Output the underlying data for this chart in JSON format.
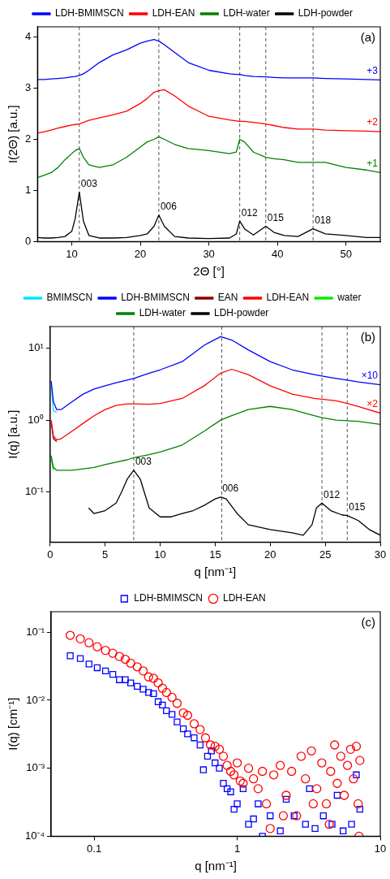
{
  "chart_data": [
    {
      "type": "line",
      "xlabel": "2Θ [°]",
      "ylabel": "I(2Θ) [a.u.]",
      "xlim": [
        5,
        55
      ],
      "xticks": [
        10,
        20,
        30,
        40,
        50
      ],
      "ylim": [
        0,
        4.2
      ],
      "yticks": [
        0,
        1,
        2,
        3,
        4
      ],
      "grid": false,
      "legend": "top",
      "marker": "none",
      "line_style": "solid",
      "x": [
        5,
        6,
        7,
        8,
        9,
        10,
        10.5,
        11.1,
        11.7,
        12.5,
        14,
        16,
        18,
        20,
        21,
        22,
        22.7,
        23.5,
        25,
        27,
        30,
        33,
        34,
        34.5,
        35.2,
        36.5,
        38.3,
        39.5,
        41,
        43,
        45.2,
        47,
        50,
        53,
        55
      ],
      "series": [
        {
          "name": "LDH-BMIMSCN",
          "color": "#0000ff",
          "values": [
            3.17,
            3.17,
            3.18,
            3.19,
            3.2,
            3.22,
            3.23,
            3.25,
            3.28,
            3.35,
            3.5,
            3.65,
            3.75,
            3.88,
            3.92,
            3.95,
            3.92,
            3.85,
            3.7,
            3.5,
            3.35,
            3.28,
            3.27,
            3.27,
            3.25,
            3.23,
            3.22,
            3.21,
            3.2,
            3.2,
            3.2,
            3.19,
            3.18,
            3.17,
            3.16
          ]
        },
        {
          "name": "LDH-EAN",
          "color": "#ff0000",
          "values": [
            2.12,
            2.15,
            2.18,
            2.22,
            2.25,
            2.28,
            2.29,
            2.3,
            2.33,
            2.37,
            2.42,
            2.48,
            2.55,
            2.7,
            2.8,
            2.92,
            2.95,
            2.97,
            2.85,
            2.65,
            2.45,
            2.38,
            2.36,
            2.35,
            2.35,
            2.33,
            2.3,
            2.27,
            2.23,
            2.2,
            2.2,
            2.18,
            2.17,
            2.16,
            2.15
          ]
        },
        {
          "name": "LDH-water",
          "color": "#008000",
          "values": [
            1.25,
            1.3,
            1.35,
            1.45,
            1.6,
            1.72,
            1.78,
            1.82,
            1.65,
            1.5,
            1.45,
            1.5,
            1.65,
            1.85,
            1.95,
            2.0,
            2.05,
            2.0,
            1.9,
            1.82,
            1.78,
            1.72,
            1.75,
            2.0,
            1.95,
            1.75,
            1.65,
            1.62,
            1.6,
            1.55,
            1.55,
            1.55,
            1.45,
            1.4,
            1.35
          ]
        },
        {
          "name": "LDH-powder",
          "color": "#000000",
          "values": [
            0.08,
            0.07,
            0.07,
            0.08,
            0.1,
            0.2,
            0.45,
            0.97,
            0.4,
            0.12,
            0.07,
            0.07,
            0.08,
            0.12,
            0.15,
            0.3,
            0.52,
            0.3,
            0.1,
            0.07,
            0.06,
            0.07,
            0.15,
            0.4,
            0.25,
            0.13,
            0.3,
            0.18,
            0.12,
            0.1,
            0.25,
            0.15,
            0.12,
            0.08,
            0.08
          ]
        }
      ],
      "ref_lines": [
        {
          "axis": "x",
          "value": 11.1,
          "color": "#555555",
          "line_style": "dashed"
        },
        {
          "axis": "x",
          "value": 22.7,
          "color": "#555555",
          "line_style": "dashed"
        },
        {
          "axis": "x",
          "value": 34.5,
          "color": "#555555",
          "line_style": "dashed"
        },
        {
          "axis": "x",
          "value": 38.3,
          "color": "#555555",
          "line_style": "dashed"
        },
        {
          "axis": "x",
          "value": 45.2,
          "color": "#555555",
          "line_style": "dashed"
        }
      ],
      "annotations": [
        "(a)",
        "+3",
        "+2",
        "+1",
        {
          "text": "003",
          "x": 11.1,
          "y": 0.97
        },
        {
          "text": "006",
          "x": 22.7,
          "y": 0.52
        },
        {
          "text": "012",
          "x": 34.5,
          "y": 0.4
        },
        {
          "text": "015",
          "x": 38.3,
          "y": 0.3
        },
        {
          "text": "018",
          "x": 45.2,
          "y": 0.25
        }
      ]
    },
    {
      "type": "line",
      "xlabel": "q [nm⁻¹]",
      "ylabel": "I(q) [a.u.]",
      "xlim": [
        0,
        30
      ],
      "xticks": [
        0,
        5,
        10,
        15,
        20,
        25,
        30
      ],
      "ylim": [
        0.02,
        20
      ],
      "yticks": [
        {
          "value": 0.1,
          "label": "10⁻¹"
        },
        {
          "value": 1,
          "label": "10⁰"
        },
        {
          "value": 10,
          "label": "10¹"
        }
      ],
      "log": "y",
      "grid": false,
      "legend": "top",
      "marker": "none",
      "line_style": "solid",
      "x": [
        0.1,
        0.3,
        0.6,
        1,
        2,
        3,
        4,
        5,
        6,
        7,
        7.6,
        9,
        10,
        12,
        14,
        15.5,
        16.5,
        18,
        20,
        22,
        24,
        24.7,
        26,
        27,
        28,
        30
      ],
      "series": [
        {
          "name": "BMIMSCN",
          "color": "#00e5ff",
          "values": [
            3.0,
            1.35,
            1.28,
            null,
            null,
            null,
            null,
            null,
            null,
            null,
            null,
            null,
            null,
            null,
            null,
            null,
            null,
            null,
            null,
            null,
            null,
            null,
            null,
            null,
            null,
            null
          ]
        },
        {
          "name": "LDH-BMIMSCN",
          "color": "#0000ff",
          "values": [
            3.5,
            1.8,
            1.4,
            1.4,
            1.8,
            2.3,
            2.7,
            3.0,
            3.3,
            3.6,
            3.8,
            4.5,
            5,
            6.5,
            11,
            14.5,
            13,
            9.5,
            6.5,
            5,
            4.3,
            4.1,
            3.8,
            3.6,
            3.4,
            3.1
          ]
        },
        {
          "name": "EAN",
          "color": "#8b0000",
          "values": [
            0.93,
            0.55,
            0.5,
            null,
            null,
            null,
            null,
            null,
            null,
            null,
            null,
            null,
            null,
            null,
            null,
            null,
            null,
            null,
            null,
            null,
            null,
            null,
            null,
            null,
            null,
            null
          ]
        },
        {
          "name": "LDH-EAN",
          "color": "#ff0000",
          "values": [
            1.0,
            0.6,
            0.53,
            0.55,
            0.7,
            0.9,
            1.15,
            1.4,
            1.6,
            1.68,
            1.68,
            1.66,
            1.7,
            2.0,
            3.0,
            4.5,
            5.1,
            4.3,
            3.0,
            2.3,
            2.0,
            1.95,
            1.85,
            1.7,
            1.55,
            1.25
          ]
        },
        {
          "name": "water",
          "color": "#00ee00",
          "values": [
            0.29,
            0.2,
            null,
            null,
            null,
            null,
            null,
            null,
            null,
            null,
            null,
            null,
            null,
            null,
            null,
            null,
            null,
            null,
            null,
            null,
            null,
            null,
            null,
            null,
            null,
            null
          ]
        },
        {
          "name": "LDH-water",
          "color": "#008000",
          "values": [
            0.32,
            0.22,
            0.2,
            0.2,
            0.2,
            0.21,
            0.22,
            0.24,
            0.26,
            0.28,
            0.3,
            0.33,
            0.36,
            0.45,
            0.7,
            1.0,
            1.15,
            1.4,
            1.55,
            1.4,
            1.15,
            1.08,
            1.0,
            0.98,
            0.96,
            0.87
          ]
        },
        {
          "name": "LDH-powder",
          "color": "#000000",
          "x": [
            3.5,
            4,
            5,
            6,
            6.5,
            7,
            7.6,
            8.2,
            9,
            10,
            11,
            12,
            13,
            14,
            15,
            15.5,
            16,
            17,
            18,
            20,
            22,
            23,
            23.8,
            24.2,
            24.7,
            25.5,
            26.5,
            27,
            28,
            29,
            30
          ],
          "values": [
            0.06,
            0.05,
            0.055,
            0.07,
            0.1,
            0.15,
            0.2,
            0.15,
            0.06,
            0.045,
            0.045,
            0.05,
            0.055,
            0.065,
            0.08,
            0.085,
            0.08,
            0.05,
            0.035,
            0.03,
            0.027,
            0.025,
            0.035,
            0.06,
            0.07,
            0.055,
            0.048,
            0.047,
            0.04,
            0.03,
            0.025
          ]
        }
      ],
      "ref_lines": [
        {
          "axis": "x",
          "value": 7.6,
          "color": "#555555",
          "line_style": "dashed"
        },
        {
          "axis": "x",
          "value": 15.6,
          "color": "#555555",
          "line_style": "dashed"
        },
        {
          "axis": "x",
          "value": 24.7,
          "color": "#555555",
          "line_style": "dashed"
        },
        {
          "axis": "x",
          "value": 27,
          "color": "#555555",
          "line_style": "dashed"
        }
      ],
      "annotations": [
        "(b)",
        "×10",
        "×2",
        {
          "text": "003",
          "x": 7.6,
          "y": 0.2
        },
        {
          "text": "006",
          "x": 15.5,
          "y": 0.085
        },
        {
          "text": "012",
          "x": 24.7,
          "y": 0.07
        },
        {
          "text": "015",
          "x": 27,
          "y": 0.047
        }
      ]
    },
    {
      "type": "scatter",
      "xlabel": "q [nm⁻¹]",
      "ylabel": "I(q) [cm⁻¹]",
      "xlim": [
        0.05,
        10
      ],
      "xticks": [
        0.1,
        1,
        10
      ],
      "ylim": [
        0.0001,
        0.2
      ],
      "yticks": [
        {
          "value": 0.0001,
          "label": "10⁻⁴"
        },
        {
          "value": 0.001,
          "label": "10⁻³"
        },
        {
          "value": 0.01,
          "label": "10⁻²"
        },
        {
          "value": 0.1,
          "label": "10⁻¹"
        }
      ],
      "log": "xy",
      "grid": false,
      "legend": "top",
      "series": [
        {
          "name": "LDH-BMIMSCN",
          "color": "#0000ff",
          "marker": "square",
          "x": [
            0.068,
            0.08,
            0.092,
            0.105,
            0.12,
            0.135,
            0.15,
            0.165,
            0.18,
            0.2,
            0.22,
            0.24,
            0.26,
            0.28,
            0.3,
            0.32,
            0.35,
            0.38,
            0.42,
            0.45,
            0.5,
            0.55,
            0.58,
            0.62,
            0.66,
            0.7,
            0.75,
            0.8,
            0.85,
            0.9,
            0.95,
            1.0,
            1.1,
            1.2,
            1.3,
            1.4,
            1.5,
            1.7,
            2.0,
            2.2,
            2.5,
            3.0,
            3.2,
            3.5,
            4.0,
            4.6,
            5.0,
            5.5,
            6.3,
            6.8,
            7.2
          ],
          "values": [
            0.045,
            0.041,
            0.034,
            0.03,
            0.027,
            0.024,
            0.02,
            0.02,
            0.018,
            0.016,
            0.0145,
            0.013,
            0.0125,
            0.0095,
            0.0085,
            0.007,
            0.0062,
            0.0048,
            0.0038,
            0.0032,
            0.0028,
            0.0022,
            0.00095,
            0.0015,
            0.0018,
            0.0012,
            0.001,
            0.0006,
            0.0005,
            0.00045,
            0.00025,
            0.0003,
            0.0005,
            0.00015,
            0.00018,
            0.0003,
            0.0001,
            0.0002,
            0.00012,
            0.00035,
            0.0002,
            0.00015,
            0.0005,
            0.00013,
            0.0002,
            0.00015,
            0.0004,
            0.00012,
            0.00015,
            0.0008,
            0.00025
          ]
        },
        {
          "name": "LDH-EAN",
          "color": "#ff0000",
          "marker": "circle",
          "x": [
            0.068,
            0.08,
            0.092,
            0.105,
            0.12,
            0.135,
            0.15,
            0.165,
            0.18,
            0.2,
            0.22,
            0.24,
            0.26,
            0.28,
            0.3,
            0.32,
            0.35,
            0.38,
            0.42,
            0.45,
            0.5,
            0.55,
            0.6,
            0.65,
            0.7,
            0.75,
            0.8,
            0.85,
            0.9,
            0.95,
            1.0,
            1.05,
            1.1,
            1.2,
            1.3,
            1.4,
            1.5,
            1.6,
            1.7,
            1.8,
            2.0,
            2.1,
            2.2,
            2.4,
            2.6,
            2.8,
            3.0,
            3.3,
            3.4,
            3.6,
            3.9,
            4.2,
            4.4,
            4.5,
            4.8,
            5.0,
            5.3,
            5.6,
            5.9,
            6.2,
            6.5,
            6.8,
            7.0,
            7.1,
            7.2
          ],
          "values": [
            0.09,
            0.08,
            0.07,
            0.061,
            0.054,
            0.049,
            0.044,
            0.04,
            0.035,
            0.031,
            0.027,
            0.022,
            0.021,
            0.018,
            0.015,
            0.013,
            0.011,
            0.009,
            0.0065,
            0.006,
            0.0045,
            0.0037,
            0.0028,
            0.0022,
            0.0021,
            0.0019,
            0.0015,
            0.0011,
            0.0009,
            0.0008,
            0.0012,
            0.00065,
            0.0006,
            0.001,
            0.0007,
            0.0005,
            0.0009,
            0.0003,
            0.00013,
            0.0008,
            0.0011,
            0.0002,
            0.0004,
            0.0009,
            0.0002,
            0.0015,
            0.0007,
            0.0018,
            0.0003,
            0.0005,
            0.0012,
            0.0003,
            0.00015,
            0.0009,
            0.0022,
            0.0006,
            0.0015,
            0.0004,
            0.0011,
            0.0019,
            0.0007,
            0.0021,
            0.0003,
            0.0001,
            0.0013
          ]
        }
      ],
      "annotations": [
        "(c)"
      ]
    }
  ]
}
